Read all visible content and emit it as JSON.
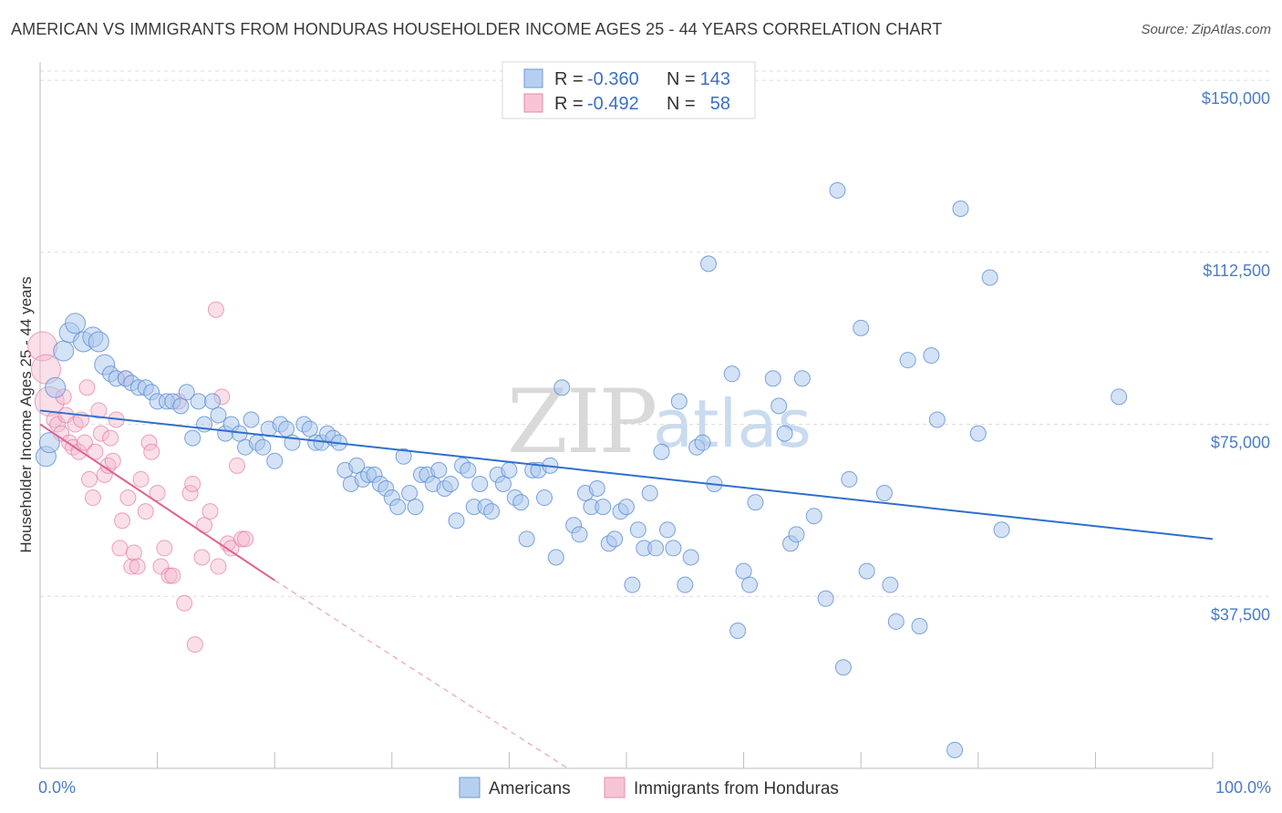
{
  "header": {
    "title": "AMERICAN VS IMMIGRANTS FROM HONDURAS HOUSEHOLDER INCOME AGES 25 - 44 YEARS CORRELATION CHART",
    "source": "Source: ZipAtlas.com"
  },
  "watermark": {
    "zip": "ZIP",
    "atlas": "atlas"
  },
  "colors": {
    "blue": "#5b8fd6",
    "blue_fill": "#a9c6ee",
    "blue_line": "#2e6fce",
    "pink": "#e77aa0",
    "pink_fill": "#f5b9cf",
    "pink_line": "#e0628f"
  },
  "legend_top": {
    "row1": {
      "r_label": "R =",
      "r_value": "-0.360",
      "n_label": "N =",
      "n_value": "143"
    },
    "row2": {
      "r_label": "R =",
      "r_value": "-0.492",
      "n_label": "N =",
      "n_value": "58"
    }
  },
  "chart_data": {
    "type": "scatter",
    "title": "AMERICAN VS IMMIGRANTS FROM HONDURAS HOUSEHOLDER INCOME AGES 25 - 44 YEARS CORRELATION CHART",
    "xlabel": "",
    "ylabel": "Householder Income Ages 25 - 44 years",
    "xlim": [
      0,
      100
    ],
    "ylim": [
      0,
      152000
    ],
    "x_tick_labels": {
      "left": "0.0%",
      "right": "100.0%"
    },
    "y_ticks": [
      {
        "value": 37500,
        "label": "$37,500"
      },
      {
        "value": 75000,
        "label": "$75,000"
      },
      {
        "value": 112500,
        "label": "$112,500"
      },
      {
        "value": 150000,
        "label": "$150,000"
      }
    ],
    "legend": [
      "Americans",
      "Immigrants from Honduras"
    ],
    "series": [
      {
        "name": "Americans",
        "r": -0.36,
        "n": 143,
        "trend": {
          "x": [
            0,
            100
          ],
          "y": [
            78000,
            50000
          ]
        },
        "points": [
          [
            0.5,
            68000
          ],
          [
            0.8,
            71000
          ],
          [
            1.3,
            83000
          ],
          [
            2,
            91000
          ],
          [
            2.5,
            95000
          ],
          [
            3,
            97000
          ],
          [
            3.7,
            93000
          ],
          [
            4.5,
            94000
          ],
          [
            5,
            93000
          ],
          [
            5.5,
            88000
          ],
          [
            6,
            86000
          ],
          [
            6.5,
            85000
          ],
          [
            7.3,
            85000
          ],
          [
            7.8,
            84000
          ],
          [
            8.4,
            83000
          ],
          [
            9,
            83000
          ],
          [
            9.5,
            82000
          ],
          [
            10,
            80000
          ],
          [
            10.8,
            80000
          ],
          [
            11.3,
            80000
          ],
          [
            12,
            79000
          ],
          [
            12.5,
            82000
          ],
          [
            13,
            72000
          ],
          [
            13.5,
            80000
          ],
          [
            14,
            75000
          ],
          [
            14.7,
            80000
          ],
          [
            15.2,
            77000
          ],
          [
            15.8,
            73000
          ],
          [
            16.3,
            75000
          ],
          [
            17,
            73000
          ],
          [
            17.5,
            70000
          ],
          [
            18,
            76000
          ],
          [
            18.5,
            71000
          ],
          [
            19,
            70000
          ],
          [
            19.5,
            74000
          ],
          [
            20,
            67000
          ],
          [
            20.5,
            75000
          ],
          [
            21,
            74000
          ],
          [
            21.5,
            71000
          ],
          [
            22.5,
            75000
          ],
          [
            23,
            74000
          ],
          [
            23.5,
            71000
          ],
          [
            24,
            71000
          ],
          [
            24.5,
            73000
          ],
          [
            25,
            72000
          ],
          [
            25.5,
            71000
          ],
          [
            26,
            65000
          ],
          [
            26.5,
            62000
          ],
          [
            27,
            66000
          ],
          [
            27.5,
            63000
          ],
          [
            28,
            64000
          ],
          [
            28.5,
            64000
          ],
          [
            29,
            62000
          ],
          [
            29.5,
            61000
          ],
          [
            30,
            59000
          ],
          [
            30.5,
            57000
          ],
          [
            31,
            68000
          ],
          [
            31.5,
            60000
          ],
          [
            32,
            57000
          ],
          [
            32.5,
            64000
          ],
          [
            33,
            64000
          ],
          [
            33.5,
            62000
          ],
          [
            34,
            65000
          ],
          [
            34.5,
            61000
          ],
          [
            35,
            62000
          ],
          [
            35.5,
            54000
          ],
          [
            36,
            66000
          ],
          [
            36.5,
            65000
          ],
          [
            37,
            57000
          ],
          [
            37.5,
            62000
          ],
          [
            38,
            57000
          ],
          [
            38.5,
            56000
          ],
          [
            39,
            64000
          ],
          [
            39.5,
            62000
          ],
          [
            40,
            65000
          ],
          [
            40.5,
            59000
          ],
          [
            41,
            58000
          ],
          [
            41.5,
            50000
          ],
          [
            42,
            65000
          ],
          [
            42.5,
            65000
          ],
          [
            43,
            59000
          ],
          [
            43.5,
            66000
          ],
          [
            44,
            46000
          ],
          [
            44.5,
            83000
          ],
          [
            45.5,
            53000
          ],
          [
            46,
            51000
          ],
          [
            46.5,
            60000
          ],
          [
            47,
            57000
          ],
          [
            47.5,
            61000
          ],
          [
            48,
            57000
          ],
          [
            48.5,
            49000
          ],
          [
            49,
            50000
          ],
          [
            49.5,
            56000
          ],
          [
            50,
            57000
          ],
          [
            50.5,
            40000
          ],
          [
            51,
            52000
          ],
          [
            51.5,
            48000
          ],
          [
            52,
            60000
          ],
          [
            52.5,
            48000
          ],
          [
            53,
            69000
          ],
          [
            53.5,
            52000
          ],
          [
            54,
            48000
          ],
          [
            54.5,
            80000
          ],
          [
            55,
            40000
          ],
          [
            55.5,
            46000
          ],
          [
            56,
            70000
          ],
          [
            56.5,
            71000
          ],
          [
            57,
            110000
          ],
          [
            57.5,
            62000
          ],
          [
            59,
            86000
          ],
          [
            59.5,
            30000
          ],
          [
            60,
            43000
          ],
          [
            60.5,
            40000
          ],
          [
            61,
            58000
          ],
          [
            62.5,
            85000
          ],
          [
            63,
            79000
          ],
          [
            63.5,
            73000
          ],
          [
            64,
            49000
          ],
          [
            64.5,
            51000
          ],
          [
            65,
            85000
          ],
          [
            66,
            55000
          ],
          [
            67,
            37000
          ],
          [
            68,
            126000
          ],
          [
            68.5,
            22000
          ],
          [
            69,
            63000
          ],
          [
            70,
            96000
          ],
          [
            70.5,
            43000
          ],
          [
            72,
            60000
          ],
          [
            72.5,
            40000
          ],
          [
            73,
            32000
          ],
          [
            74,
            89000
          ],
          [
            75,
            31000
          ],
          [
            76,
            90000
          ],
          [
            76.5,
            76000
          ],
          [
            78,
            4000
          ],
          [
            78.5,
            122000
          ],
          [
            80,
            73000
          ],
          [
            81,
            107000
          ],
          [
            82,
            52000
          ],
          [
            92,
            81000
          ]
        ]
      },
      {
        "name": "Immigrants from Honduras",
        "r": -0.492,
        "n": 58,
        "trend": {
          "x": [
            0,
            20
          ],
          "y": [
            75000,
            41000
          ]
        },
        "trend_ext": {
          "x": [
            20,
            45
          ],
          "y": [
            41000,
            0
          ]
        },
        "points": [
          [
            0.2,
            92000
          ],
          [
            0.5,
            87000
          ],
          [
            0.8,
            80000
          ],
          [
            1.2,
            76000
          ],
          [
            1.5,
            75000
          ],
          [
            1.8,
            73000
          ],
          [
            2,
            81000
          ],
          [
            2.2,
            77000
          ],
          [
            2.5,
            71000
          ],
          [
            2.8,
            70000
          ],
          [
            3,
            75000
          ],
          [
            3.3,
            69000
          ],
          [
            3.5,
            76000
          ],
          [
            3.8,
            71000
          ],
          [
            4,
            83000
          ],
          [
            4.2,
            63000
          ],
          [
            4.5,
            59000
          ],
          [
            4.7,
            69000
          ],
          [
            5,
            78000
          ],
          [
            5.2,
            73000
          ],
          [
            5.5,
            64000
          ],
          [
            5.8,
            66000
          ],
          [
            6,
            72000
          ],
          [
            6.2,
            67000
          ],
          [
            6.5,
            76000
          ],
          [
            6.8,
            48000
          ],
          [
            7,
            54000
          ],
          [
            7.3,
            85000
          ],
          [
            7.5,
            59000
          ],
          [
            7.8,
            44000
          ],
          [
            8,
            47000
          ],
          [
            8.3,
            44000
          ],
          [
            8.6,
            63000
          ],
          [
            9,
            56000
          ],
          [
            9.3,
            71000
          ],
          [
            9.5,
            69000
          ],
          [
            10,
            60000
          ],
          [
            10.3,
            44000
          ],
          [
            10.6,
            48000
          ],
          [
            11,
            42000
          ],
          [
            11.3,
            42000
          ],
          [
            11.8,
            80000
          ],
          [
            12.3,
            36000
          ],
          [
            12.8,
            60000
          ],
          [
            13,
            62000
          ],
          [
            13.2,
            27000
          ],
          [
            13.8,
            46000
          ],
          [
            14,
            53000
          ],
          [
            14.5,
            56000
          ],
          [
            15,
            100000
          ],
          [
            15.2,
            44000
          ],
          [
            15.5,
            81000
          ],
          [
            16,
            49000
          ],
          [
            16.3,
            48000
          ],
          [
            16.8,
            66000
          ],
          [
            17.2,
            50000
          ],
          [
            17.5,
            50000
          ]
        ]
      }
    ]
  },
  "bottom_legend": {
    "americans": "Americans",
    "honduras": "Immigrants from Honduras"
  }
}
